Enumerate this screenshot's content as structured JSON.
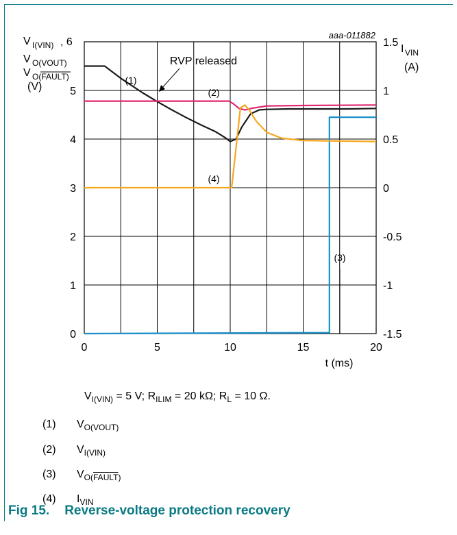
{
  "chart_data": {
    "type": "line",
    "code": "aaa-011882",
    "annotation": "RVP released",
    "xlabel": "t (ms)",
    "x_ticks": [
      "0",
      "5",
      "10",
      "15",
      "20"
    ],
    "xlim": [
      0,
      20
    ],
    "y_left_label": [
      "V",
      "I(VIN)",
      ", 6",
      "V",
      "O(VOUT)",
      "V",
      "O(FAULT)",
      "(V)"
    ],
    "y_left_ticks": [
      "0",
      "1",
      "2",
      "3",
      "4",
      "5",
      "6"
    ],
    "ylim_left": [
      0,
      6
    ],
    "y_right_label": [
      "I",
      "VIN",
      "(A)"
    ],
    "y_right_ticks": [
      "-1.5",
      "-1",
      "-0.5",
      "0",
      "0.5",
      "1",
      "1.5"
    ],
    "ylim_right": [
      -1.5,
      1.5
    ],
    "grid": true,
    "series": [
      {
        "name": "(1)",
        "axis": "left",
        "color": "#1a1a1a",
        "x": [
          0,
          1.4,
          2.5,
          4,
          5,
          6,
          7,
          8,
          9,
          9.7,
          10,
          10.4,
          10.8,
          11.4,
          12,
          12.5,
          14,
          16,
          18,
          20
        ],
        "y": [
          5.5,
          5.5,
          5.25,
          4.95,
          4.77,
          4.6,
          4.44,
          4.29,
          4.15,
          4.02,
          3.95,
          4.0,
          4.25,
          4.52,
          4.6,
          4.61,
          4.62,
          4.62,
          4.62,
          4.63
        ]
      },
      {
        "name": "(2)",
        "axis": "left",
        "color": "#e0256e",
        "x": [
          0,
          9.9,
          10.2,
          10.6,
          11.0,
          11.6,
          12.5,
          15,
          20
        ],
        "y": [
          4.78,
          4.78,
          4.73,
          4.63,
          4.6,
          4.64,
          4.68,
          4.69,
          4.7
        ]
      },
      {
        "name": "(3)",
        "axis": "left",
        "color": "#1a8fc9",
        "x": [
          0,
          16.8,
          16.8,
          20
        ],
        "y": [
          0.0,
          0.02,
          4.45,
          4.45
        ]
      },
      {
        "name": "(4)",
        "axis": "right",
        "color": "#f6a81d",
        "x": [
          0,
          10.1,
          10.7,
          11.0,
          11.3,
          11.8,
          12.5,
          13.5,
          15,
          17,
          20
        ],
        "y": [
          0.0,
          0.0,
          0.82,
          0.85,
          0.8,
          0.68,
          0.57,
          0.51,
          0.485,
          0.48,
          0.475
        ]
      }
    ]
  },
  "caption": {
    "parts": [
      {
        "t": "V"
      },
      {
        "s": "I(VIN)"
      },
      {
        "t": " = 5 V; R"
      },
      {
        "s": "ILIM"
      },
      {
        "t": " = 20 kΩ; R"
      },
      {
        "s": "L"
      },
      {
        "t": " = 10 Ω."
      }
    ]
  },
  "legend": [
    {
      "num": "(1)",
      "main": "V",
      "sub": "O(VOUT)"
    },
    {
      "num": "(2)",
      "main": "V",
      "sub": "I(VIN)"
    },
    {
      "num": "(3)",
      "main": "V",
      "sub": "O(FAULT)"
    },
    {
      "num": "(4)",
      "main": "I",
      "sub": "VIN"
    }
  ],
  "figure": {
    "number": "Fig 15.",
    "title": "Reverse-voltage protection recovery"
  }
}
